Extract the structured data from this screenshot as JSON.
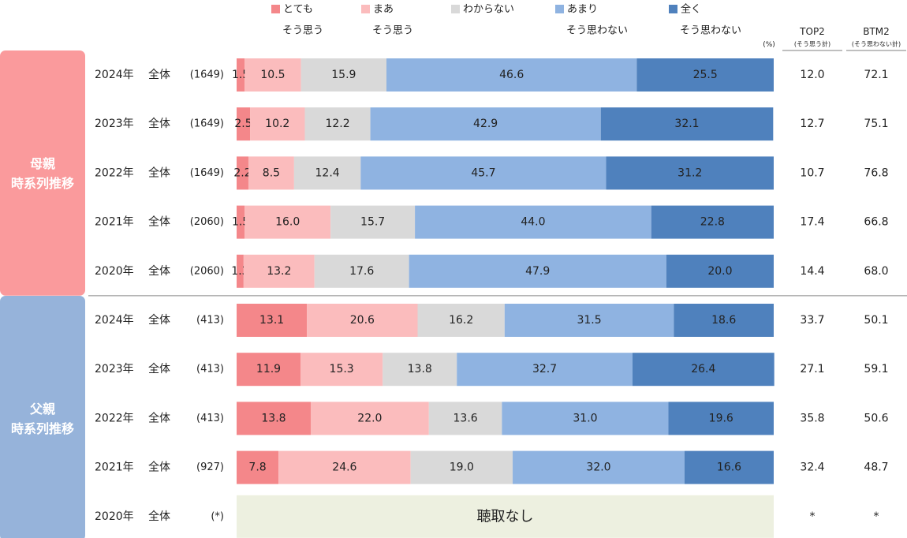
{
  "chart_data": {
    "type": "bar",
    "orientation": "horizontal-stacked-100",
    "unit_label": "(%)",
    "legend": [
      {
        "line1": "とても",
        "line2": "そう思う",
        "color": "#f4878a"
      },
      {
        "line1": "まあ",
        "line2": "そう思う",
        "color": "#fbbcbd"
      },
      {
        "line1": "わからない",
        "line2": "",
        "color": "#d9d9d9"
      },
      {
        "line1": "あまり",
        "line2": "そう思わない",
        "color": "#8fb3e1"
      },
      {
        "line1": "全く",
        "line2": "そう思わない",
        "color": "#4f81bd"
      }
    ],
    "summary_headers": [
      {
        "label": "TOP2",
        "sub": "(そう思う計)"
      },
      {
        "label": "BTM2",
        "sub": "(そう思わない計)"
      }
    ],
    "groups": [
      {
        "name_line1": "母親",
        "name_line2": "時系列推移",
        "color": "#fa9a9c",
        "rows": [
          {
            "year": "2024年",
            "segment": "全体",
            "n": "(1649)",
            "values": [
              1.5,
              10.5,
              15.9,
              46.6,
              25.5
            ],
            "top2": "12.0",
            "btm2": "72.1"
          },
          {
            "year": "2023年",
            "segment": "全体",
            "n": "(1649)",
            "values": [
              2.5,
              10.2,
              12.2,
              42.9,
              32.1
            ],
            "top2": "12.7",
            "btm2": "75.1"
          },
          {
            "year": "2022年",
            "segment": "全体",
            "n": "(1649)",
            "values": [
              2.2,
              8.5,
              12.4,
              45.7,
              31.2
            ],
            "top2": "10.7",
            "btm2": "76.8"
          },
          {
            "year": "2021年",
            "segment": "全体",
            "n": "(2060)",
            "values": [
              1.5,
              16.0,
              15.7,
              44.0,
              22.8
            ],
            "top2": "17.4",
            "btm2": "66.8"
          },
          {
            "year": "2020年",
            "segment": "全体",
            "n": "(2060)",
            "values": [
              1.3,
              13.2,
              17.6,
              47.9,
              20.0
            ],
            "top2": "14.4",
            "btm2": "68.0"
          }
        ]
      },
      {
        "name_line1": "父親",
        "name_line2": "時系列推移",
        "color": "#96b3da",
        "rows": [
          {
            "year": "2024年",
            "segment": "全体",
            "n": "(413)",
            "values": [
              13.1,
              20.6,
              16.2,
              31.5,
              18.6
            ],
            "top2": "33.7",
            "btm2": "50.1"
          },
          {
            "year": "2023年",
            "segment": "全体",
            "n": "(413)",
            "values": [
              11.9,
              15.3,
              13.8,
              32.7,
              26.4
            ],
            "top2": "27.1",
            "btm2": "59.1"
          },
          {
            "year": "2022年",
            "segment": "全体",
            "n": "(413)",
            "values": [
              13.8,
              22.0,
              13.6,
              31.0,
              19.6
            ],
            "top2": "35.8",
            "btm2": "50.6"
          },
          {
            "year": "2021年",
            "segment": "全体",
            "n": "(927)",
            "values": [
              7.8,
              24.6,
              19.0,
              32.0,
              16.6
            ],
            "top2": "32.4",
            "btm2": "48.7"
          },
          {
            "year": "2020年",
            "segment": "全体",
            "n": "(*)",
            "values": null,
            "no_data_label": "聴取なし",
            "top2": "*",
            "btm2": "*"
          }
        ]
      }
    ]
  }
}
